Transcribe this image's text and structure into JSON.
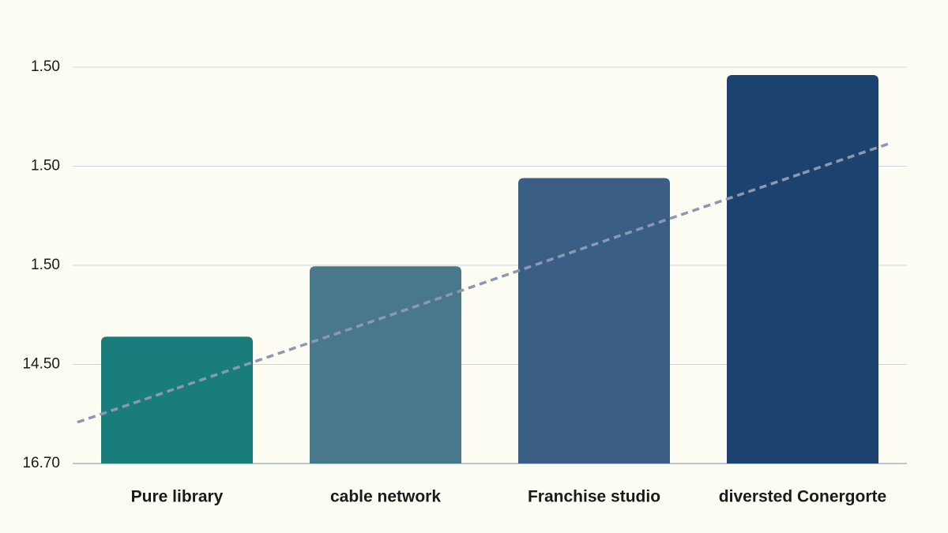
{
  "chart_data": {
    "type": "bar",
    "categories": [
      "Pure library",
      "cable network",
      "Franchise studio",
      "diversted Conergorte"
    ],
    "values": [
      1.28,
      1.99,
      2.88,
      3.92
    ],
    "colors": [
      "#187d7b",
      "#4a788b",
      "#3a5e84",
      "#1c436f"
    ],
    "ylim": [
      0,
      4
    ],
    "yticks": [
      {
        "value": 0,
        "label": "16.70"
      },
      {
        "value": 1,
        "label": "14.50"
      },
      {
        "value": 2,
        "label": "1.50"
      },
      {
        "value": 3,
        "label": "1.50"
      },
      {
        "value": 4,
        "label": "1.50"
      }
    ],
    "grid": true,
    "trendline": {
      "values": [
        0.76,
        1.48,
        2.21,
        2.93
      ],
      "color": "#8b98b1",
      "dashed": true
    }
  }
}
